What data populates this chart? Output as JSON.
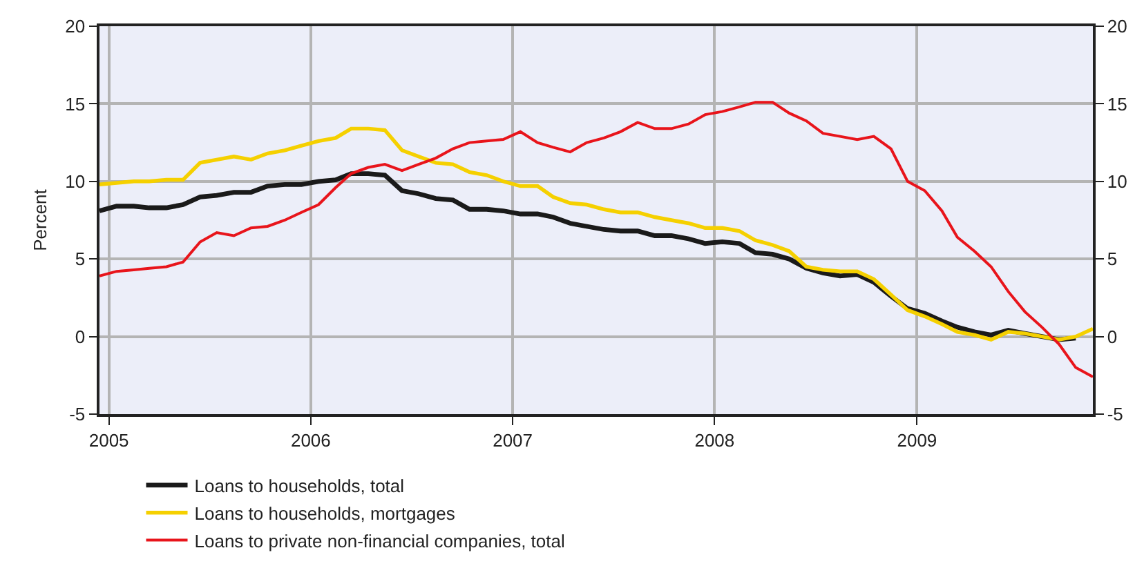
{
  "chart_data": {
    "type": "line",
    "ylabel": "Percent",
    "x": [
      "2004-12-15",
      "2005-01-15",
      "2005-02-15",
      "2005-03-15",
      "2005-04-15",
      "2005-05-15",
      "2005-06-15",
      "2005-07-15",
      "2005-08-15",
      "2005-09-15",
      "2005-10-15",
      "2005-11-15",
      "2005-12-15",
      "2006-01-15",
      "2006-02-15",
      "2006-03-15",
      "2006-04-15",
      "2006-05-15",
      "2006-06-15",
      "2006-07-15",
      "2006-08-15",
      "2006-09-15",
      "2006-10-15",
      "2006-11-15",
      "2006-12-15",
      "2007-01-15",
      "2007-02-15",
      "2007-03-15",
      "2007-04-15",
      "2007-05-15",
      "2007-06-15",
      "2007-07-15",
      "2007-08-15",
      "2007-09-15",
      "2007-10-15",
      "2007-11-15",
      "2007-12-15",
      "2008-01-15",
      "2008-02-15",
      "2008-03-15",
      "2008-04-15",
      "2008-05-15",
      "2008-06-15",
      "2008-07-15",
      "2008-08-15",
      "2008-09-15",
      "2008-10-15",
      "2008-11-15",
      "2008-12-15",
      "2009-01-15",
      "2009-02-15",
      "2009-03-15",
      "2009-04-15",
      "2009-05-15",
      "2009-06-15",
      "2009-07-15",
      "2009-08-15",
      "2009-09-15",
      "2009-10-15",
      "2009-11-15"
    ],
    "series": [
      {
        "name": "Loans to households, total",
        "color": "#1a1a1a",
        "values": [
          8.1,
          8.4,
          8.4,
          8.3,
          8.3,
          8.5,
          9.0,
          9.1,
          9.3,
          9.3,
          9.7,
          9.8,
          9.8,
          10.0,
          10.1,
          10.5,
          10.5,
          10.4,
          9.4,
          9.2,
          8.9,
          8.8,
          8.2,
          8.2,
          8.1,
          7.9,
          7.9,
          7.7,
          7.3,
          7.1,
          6.9,
          6.8,
          6.8,
          6.5,
          6.5,
          6.3,
          6.0,
          6.1,
          6.0,
          5.4,
          5.3,
          5.0,
          4.4,
          4.1,
          3.9,
          4.0,
          3.5,
          2.6,
          1.8,
          1.5,
          1.0,
          0.6,
          0.3,
          0.1,
          0.4,
          0.2,
          0.0,
          -0.2,
          -0.1,
          null
        ]
      },
      {
        "name": "Loans to households, mortgages",
        "color": "#f5d000",
        "values": [
          9.8,
          9.9,
          10.0,
          10.0,
          10.1,
          10.1,
          11.2,
          11.4,
          11.6,
          11.4,
          11.8,
          12.0,
          12.3,
          12.6,
          12.8,
          13.4,
          13.4,
          13.3,
          12.0,
          11.6,
          11.2,
          11.1,
          10.6,
          10.4,
          10.0,
          9.7,
          9.7,
          9.0,
          8.6,
          8.5,
          8.2,
          8.0,
          8.0,
          7.7,
          7.5,
          7.3,
          7.0,
          7.0,
          6.8,
          6.2,
          5.9,
          5.5,
          4.5,
          4.3,
          4.2,
          4.2,
          3.7,
          2.7,
          1.7,
          1.3,
          0.8,
          0.3,
          0.1,
          -0.2,
          0.3,
          0.2,
          0.0,
          -0.2,
          0.0,
          0.5
        ]
      },
      {
        "name": "Loans to private non-financial companies, total",
        "color": "#e8141b",
        "values": [
          3.9,
          4.2,
          4.3,
          4.4,
          4.5,
          4.8,
          6.1,
          6.7,
          6.5,
          7.0,
          7.1,
          7.5,
          8.0,
          8.5,
          9.6,
          10.5,
          10.9,
          11.1,
          10.7,
          11.1,
          11.5,
          12.1,
          12.5,
          12.6,
          12.7,
          13.2,
          12.5,
          12.2,
          11.9,
          12.5,
          12.8,
          13.2,
          13.8,
          13.4,
          13.4,
          13.7,
          14.3,
          14.5,
          14.8,
          15.1,
          15.1,
          14.4,
          13.9,
          13.1,
          12.9,
          12.7,
          12.9,
          12.1,
          10.0,
          9.4,
          8.1,
          6.4,
          5.5,
          4.5,
          2.9,
          1.6,
          0.6,
          -0.5,
          -2.0,
          -2.6
        ]
      }
    ],
    "xlim": [
      "2004-12-15",
      "2009-11-15"
    ],
    "xticks": [
      "2005",
      "2006",
      "2007",
      "2008",
      "2009"
    ],
    "ylim": [
      -5,
      20
    ],
    "yticks": [
      -5,
      0,
      5,
      10,
      15,
      20
    ],
    "y2lim": [
      -5,
      20
    ],
    "y2ticks": [
      -5,
      0,
      5,
      10,
      15,
      20
    ],
    "grid": true,
    "legend": "bottom",
    "line_style": "solid",
    "marker": "none"
  }
}
